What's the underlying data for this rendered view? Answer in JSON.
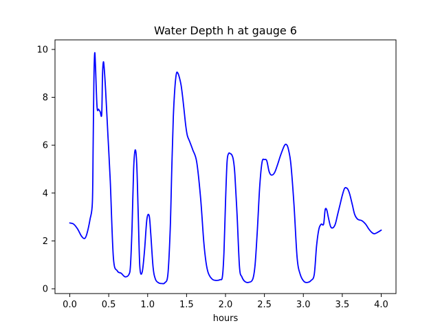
{
  "chart_data": {
    "type": "line",
    "title": "Water Depth h at gauge 6",
    "xlabel": "hours",
    "ylabel": "",
    "xlim": [
      -0.19,
      4.19
    ],
    "ylim": [
      -0.2,
      10.4
    ],
    "xticks": [
      0.0,
      0.5,
      1.0,
      1.5,
      2.0,
      2.5,
      3.0,
      3.5,
      4.0
    ],
    "xtick_labels": [
      "0.0",
      "0.5",
      "1.0",
      "1.5",
      "2.0",
      "2.5",
      "3.0",
      "3.5",
      "4.0"
    ],
    "yticks": [
      0,
      2,
      4,
      6,
      8,
      10
    ],
    "ytick_labels": [
      "0",
      "2",
      "4",
      "6",
      "8",
      "10"
    ],
    "grid": false,
    "colors": {
      "line": "#0000ff",
      "axes": "#000000"
    },
    "series": [
      {
        "x": [
          0.0,
          0.05,
          0.1,
          0.15,
          0.19,
          0.22,
          0.26,
          0.29,
          0.3,
          0.31,
          0.32,
          0.33,
          0.35,
          0.37,
          0.39,
          0.41,
          0.42,
          0.43,
          0.44,
          0.46,
          0.49,
          0.52,
          0.56,
          0.61,
          0.66,
          0.71,
          0.76,
          0.78,
          0.8,
          0.82,
          0.84,
          0.86,
          0.88,
          0.9,
          0.93,
          0.96,
          0.99,
          1.02,
          1.04,
          1.07,
          1.1,
          1.14,
          1.18,
          1.22,
          1.26,
          1.29,
          1.31,
          1.33,
          1.35,
          1.37,
          1.39,
          1.41,
          1.43,
          1.45,
          1.47,
          1.49,
          1.51,
          1.54,
          1.58,
          1.63,
          1.68,
          1.72,
          1.75,
          1.78,
          1.83,
          1.88,
          1.93,
          1.96,
          1.98,
          2.0,
          2.02,
          2.04,
          2.06,
          2.08,
          2.1,
          2.12,
          2.15,
          2.18,
          2.21,
          2.25,
          2.3,
          2.35,
          2.38,
          2.41,
          2.44,
          2.47,
          2.5,
          2.53,
          2.56,
          2.59,
          2.63,
          2.67,
          2.71,
          2.76,
          2.79,
          2.81,
          2.84,
          2.88,
          2.92,
          2.96,
          3.01,
          3.06,
          3.1,
          3.14,
          3.17,
          3.2,
          3.23,
          3.26,
          3.28,
          3.3,
          3.32,
          3.35,
          3.38,
          3.41,
          3.44,
          3.47,
          3.5,
          3.53,
          3.56,
          3.58,
          3.6,
          3.63,
          3.66,
          3.7,
          3.75,
          3.8,
          3.84,
          3.88,
          3.91,
          3.95,
          4.0
        ],
        "y": [
          2.75,
          2.7,
          2.5,
          2.2,
          2.1,
          2.3,
          2.9,
          3.6,
          6.0,
          8.8,
          9.85,
          9.3,
          7.6,
          7.5,
          7.4,
          7.3,
          8.9,
          9.45,
          9.3,
          8.3,
          6.4,
          4.5,
          1.3,
          0.75,
          0.65,
          0.5,
          0.6,
          1.0,
          2.6,
          5.0,
          5.8,
          5.2,
          3.0,
          0.9,
          0.7,
          1.6,
          2.9,
          3.05,
          2.3,
          0.9,
          0.4,
          0.25,
          0.22,
          0.25,
          0.6,
          2.5,
          5.0,
          7.2,
          8.4,
          9.0,
          9.0,
          8.8,
          8.5,
          8.0,
          7.4,
          6.8,
          6.4,
          6.15,
          5.8,
          5.3,
          3.8,
          2.0,
          1.1,
          0.65,
          0.4,
          0.35,
          0.38,
          0.5,
          1.5,
          3.6,
          5.3,
          5.65,
          5.65,
          5.6,
          5.4,
          4.8,
          3.0,
          0.9,
          0.5,
          0.3,
          0.27,
          0.4,
          1.0,
          2.5,
          4.3,
          5.3,
          5.4,
          5.35,
          4.9,
          4.75,
          4.85,
          5.2,
          5.6,
          6.0,
          6.0,
          5.8,
          5.2,
          3.5,
          1.3,
          0.6,
          0.3,
          0.27,
          0.35,
          0.6,
          1.8,
          2.5,
          2.7,
          2.7,
          3.3,
          3.3,
          3.0,
          2.6,
          2.55,
          2.7,
          3.1,
          3.5,
          3.9,
          4.2,
          4.2,
          4.1,
          3.9,
          3.5,
          3.1,
          2.9,
          2.85,
          2.7,
          2.5,
          2.35,
          2.3,
          2.35,
          2.45
        ]
      }
    ]
  }
}
